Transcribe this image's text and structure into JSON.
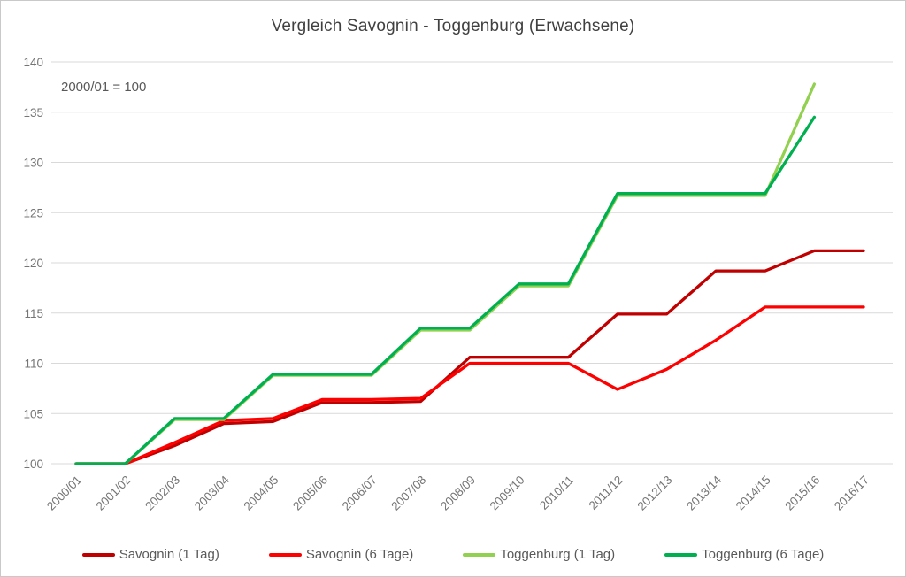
{
  "chart_data": {
    "type": "line",
    "title": "Vergleich Savognin - Toggenburg (Erwachsene)",
    "annotation": "2000/01 = 100",
    "xlabel": "",
    "ylabel": "",
    "ylim": [
      100,
      140
    ],
    "ytick_step": 5,
    "grid": true,
    "legend_position": "bottom",
    "grid_color": "#d9d9d9",
    "axis_label_color": "#757575",
    "title_color": "#404040",
    "categories": [
      "2000/01",
      "2001/02",
      "2002/03",
      "2003/04",
      "2004/05",
      "2005/06",
      "2006/07",
      "2007/08",
      "2008/09",
      "2009/10",
      "2010/11",
      "2011/12",
      "2012/13",
      "2013/14",
      "2014/15",
      "2015/16",
      "2016/17"
    ],
    "series": [
      {
        "name": "Savognin (1 Tag)",
        "color": "#c00000",
        "values": [
          100,
          100,
          101.8,
          104.0,
          104.2,
          106.1,
          106.1,
          106.2,
          110.6,
          110.6,
          110.6,
          114.9,
          114.9,
          119.2,
          119.2,
          121.2,
          121.2
        ]
      },
      {
        "name": "Savognin (6 Tage)",
        "color": "#ff0000",
        "values": [
          100,
          100,
          102.1,
          104.3,
          104.5,
          106.4,
          106.4,
          106.5,
          110.0,
          110.0,
          110.0,
          107.4,
          109.4,
          112.3,
          115.6,
          115.6,
          115.6
        ]
      },
      {
        "name": "Toggenburg (1 Tag)",
        "color": "#92d050",
        "values": [
          100,
          100,
          104.4,
          104.4,
          108.8,
          108.8,
          108.8,
          113.3,
          113.3,
          117.7,
          117.7,
          126.7,
          126.7,
          126.7,
          126.7,
          137.8,
          null
        ]
      },
      {
        "name": "Toggenburg (6 Tage)",
        "color": "#00b050",
        "values": [
          100,
          100,
          104.5,
          104.5,
          108.9,
          108.9,
          108.9,
          113.5,
          113.5,
          117.9,
          117.9,
          126.9,
          126.9,
          126.9,
          126.9,
          134.5,
          null
        ]
      }
    ]
  }
}
